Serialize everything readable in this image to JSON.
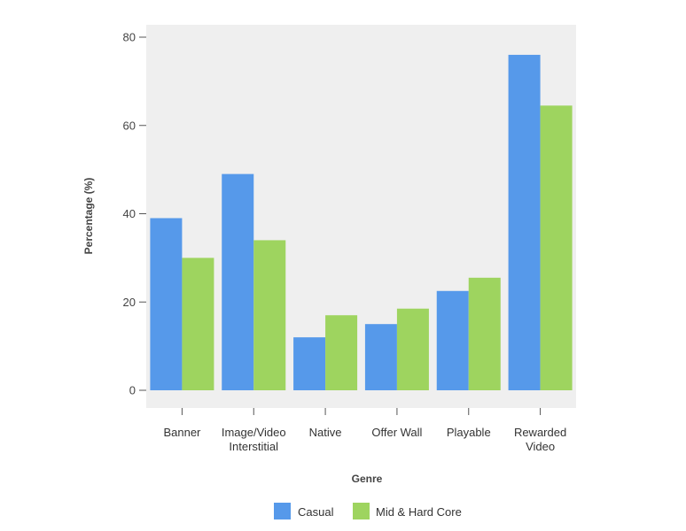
{
  "chart_data": {
    "type": "bar",
    "title": "",
    "xlabel": "Genre",
    "ylabel": "Percentage (%)",
    "ylim": [
      0,
      80
    ],
    "yticks": [
      0,
      20,
      40,
      60,
      80
    ],
    "grid": false,
    "legend_position": "bottom",
    "categories": [
      [
        "Banner"
      ],
      [
        "Image/Video",
        "Interstitial"
      ],
      [
        "Native"
      ],
      [
        "Offer Wall"
      ],
      [
        "Playable"
      ],
      [
        "Rewarded",
        "Video"
      ]
    ],
    "series": [
      {
        "name": "Casual",
        "color": "#5699ea",
        "values": [
          39,
          49,
          12,
          15,
          22.5,
          76
        ]
      },
      {
        "name": "Mid & Hard Core",
        "color": "#9ed45f",
        "values": [
          30,
          34,
          17,
          18.5,
          25.5,
          64.5
        ]
      }
    ],
    "plot_background": "#efefef"
  }
}
